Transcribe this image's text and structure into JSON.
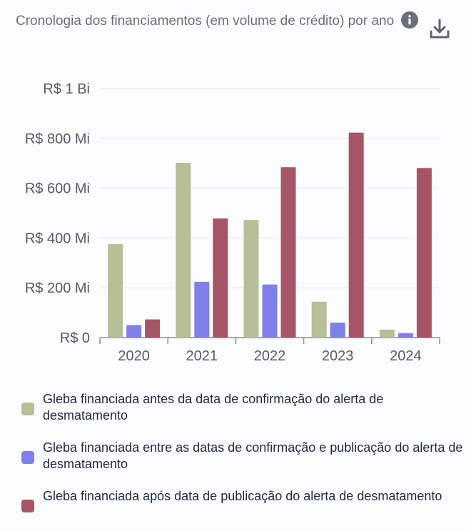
{
  "header": {
    "title": "Cronologia dos financiamentos (em volume de crédito) por ano",
    "info_icon": "info-icon",
    "download_icon": "download-icon"
  },
  "colors": {
    "antes": "#b5c097",
    "entre": "#8080ea",
    "apos": "#a85467",
    "axis_text": "#555a66",
    "grid": "#e4e6ec"
  },
  "chart_data": {
    "type": "bar",
    "categories": [
      "2020",
      "2021",
      "2022",
      "2023",
      "2024"
    ],
    "ylim": [
      0,
      1000
    ],
    "yticks": [
      {
        "value": 0,
        "label": "R$ 0"
      },
      {
        "value": 200,
        "label": "R$ 200 Mi"
      },
      {
        "value": 400,
        "label": "R$ 400 Mi"
      },
      {
        "value": 600,
        "label": "R$ 600 Mi"
      },
      {
        "value": 800,
        "label": "R$ 800 Mi"
      },
      {
        "value": 1000,
        "label": "R$ 1 Bi"
      }
    ],
    "grid": true,
    "legend_position": "bottom",
    "series": [
      {
        "name": "Gleba financiada antes da data de confirmação do alerta de desmatamento",
        "color": "#b5c097",
        "values": [
          376,
          702,
          472,
          144,
          32
        ]
      },
      {
        "name": "Gleba financiada entre as datas de confirmação e publicação do alerta de desmatamento",
        "color": "#8080ea",
        "values": [
          50,
          224,
          213,
          60,
          18
        ]
      },
      {
        "name": "Gleba financiada após data de publicação do alerta de desmatamento",
        "color": "#a85467",
        "values": [
          73,
          478,
          684,
          823,
          681
        ]
      }
    ]
  }
}
